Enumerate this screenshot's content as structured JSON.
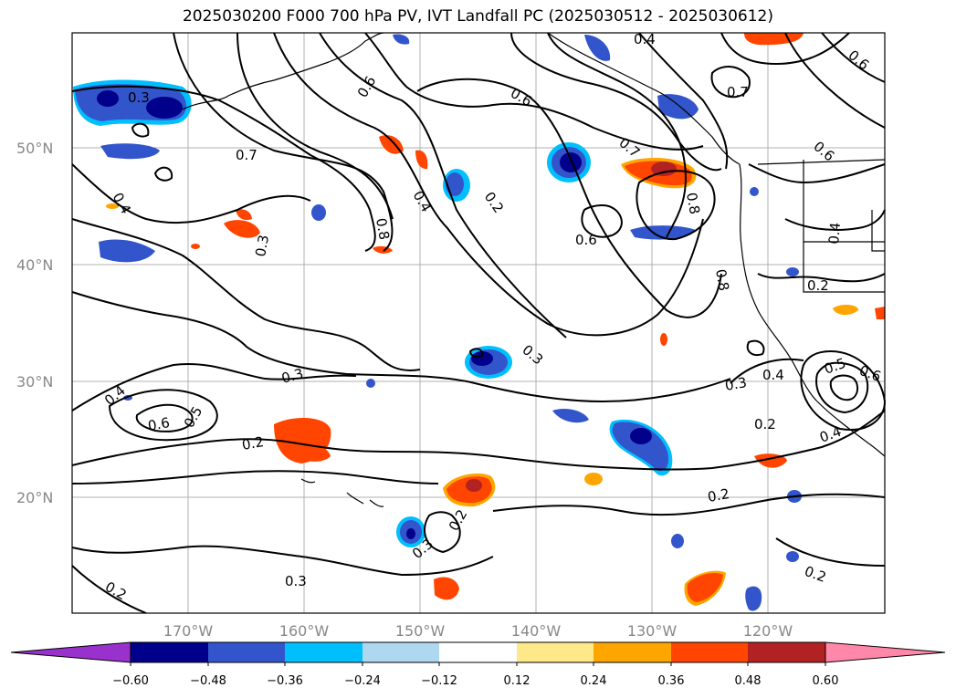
{
  "title": "2025030200 F000 700 hPa PV, IVT Landfall PC (2025030512 - 2025030612)",
  "axes": {
    "lat_ticks": [
      "50°N",
      "40°N",
      "30°N",
      "20°N"
    ],
    "lon_ticks": [
      "170°W",
      "160°W",
      "150°W",
      "140°W",
      "130°W",
      "120°W"
    ]
  },
  "contour_labels": [
    "0.3",
    "0.7",
    "0.6",
    "0.4",
    "0.8",
    "0.4",
    "0.6",
    "0.2",
    "0.7",
    "0.8",
    "0.7",
    "0.6",
    "0.4",
    "0.8",
    "0.6",
    "0.3",
    "0.5",
    "0.4",
    "0.2",
    "0.3",
    "0.3",
    "0.3",
    "0.4",
    "0.6",
    "0.5",
    "0.2",
    "0.2",
    "0.3",
    "0.2",
    "0.3",
    "0.2",
    "0.2",
    "0.4",
    "0.6",
    "0.6",
    "0.4",
    "0.2"
  ],
  "colorbar": {
    "ticks": [
      "−0.60",
      "−0.48",
      "−0.36",
      "−0.24",
      "−0.12",
      "0.12",
      "0.24",
      "0.36",
      "0.48",
      "0.60"
    ],
    "colors": [
      "#9932cc",
      "#00008b",
      "#3355cc",
      "#00bfff",
      "#add8f0",
      "#ffffff",
      "#fde88a",
      "#ffa500",
      "#ff4500",
      "#b22222",
      "#ff88aa"
    ]
  }
}
